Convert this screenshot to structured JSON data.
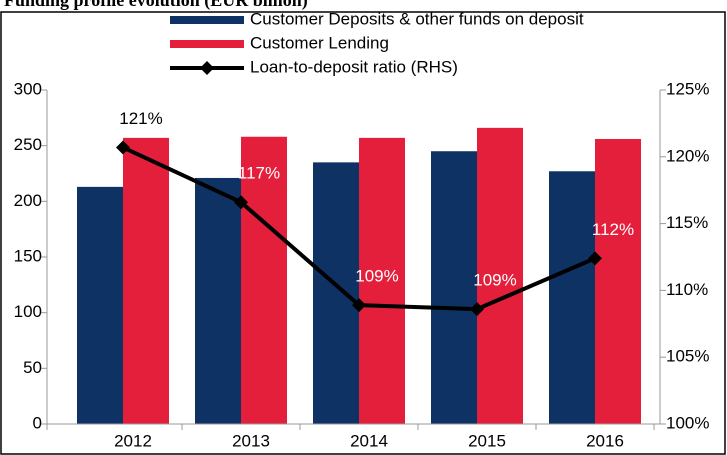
{
  "chart_data": {
    "type": "bar-line",
    "title": "Funding profile evolution (EUR billion)",
    "categories": [
      "2012",
      "2013",
      "2014",
      "2015",
      "2016"
    ],
    "series": [
      {
        "name": "Customer Deposits & other funds on deposit",
        "color": "#0d3263",
        "values": [
          213,
          221,
          235,
          245,
          227
        ]
      },
      {
        "name": "Customer Lending",
        "color": "#e31f3b",
        "values": [
          257,
          258,
          257,
          266,
          256
        ]
      },
      {
        "name": "Loan-to-deposit ratio (RHS)",
        "color": "#000000",
        "axis": "y2",
        "values": [
          120.7,
          116.6,
          108.9,
          108.6,
          112.4
        ],
        "value_labels": [
          "121%",
          "117%",
          "109%",
          "109%",
          "112%"
        ]
      }
    ],
    "ylim": [
      0,
      300
    ],
    "yticks": [
      0,
      50,
      100,
      150,
      200,
      250,
      300
    ],
    "y2lim": [
      100,
      125
    ],
    "y2ticks": [
      {
        "value": 100,
        "label": "100%"
      },
      {
        "value": 105,
        "label": "105%"
      },
      {
        "value": 110,
        "label": "110%"
      },
      {
        "value": 115,
        "label": "115%"
      },
      {
        "value": 120,
        "label": "120%"
      },
      {
        "value": 125,
        "label": "125%"
      }
    ]
  }
}
